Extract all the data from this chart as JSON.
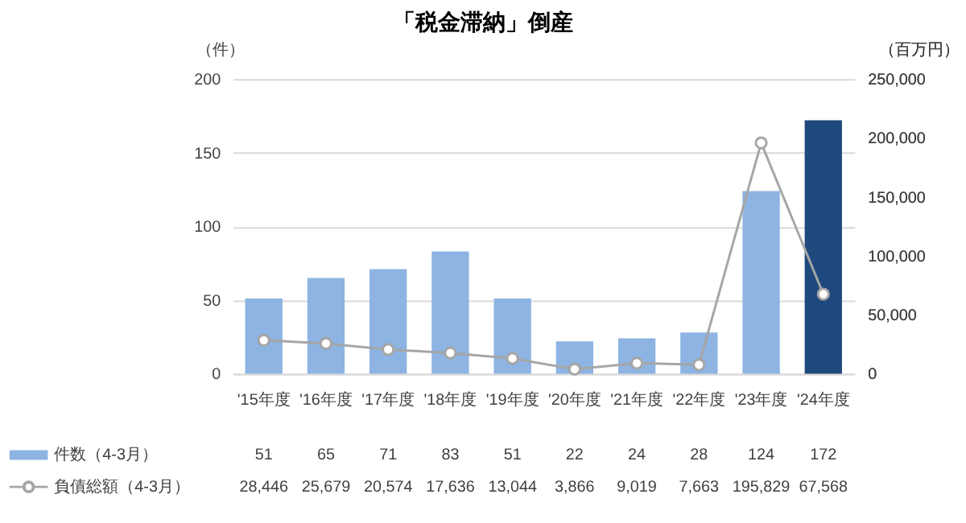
{
  "chart_data": {
    "type": "bar",
    "title": "「税金滞納」倒産",
    "ylabel": "（件）",
    "y2label": "（百万円）",
    "categories": [
      "'15年度",
      "'16年度",
      "'17年度",
      "'18年度",
      "'19年度",
      "'20年度",
      "'21年度",
      "'22年度",
      "'23年度",
      "'24年度"
    ],
    "series": [
      {
        "name": "件数（4-3月）",
        "color": "#8db4e2",
        "colors": [
          "#8db4e2",
          "#8db4e2",
          "#8db4e2",
          "#8db4e2",
          "#8db4e2",
          "#8db4e2",
          "#8db4e2",
          "#8db4e2",
          "#8db4e2",
          "#1f497d"
        ],
        "values": [
          51,
          65,
          71,
          83,
          51,
          22,
          24,
          28,
          124,
          172
        ],
        "value_labels": [
          "51",
          "65",
          "71",
          "83",
          "51",
          "22",
          "24",
          "28",
          "124",
          "172"
        ]
      },
      {
        "name": "負債総額（4-3月）",
        "type": "line",
        "axis": "y2",
        "color": "#a6a6a6",
        "values": [
          28446,
          25679,
          20574,
          17636,
          13044,
          3866,
          9019,
          7663,
          195829,
          67568
        ],
        "value_labels": [
          "28,446",
          "25,679",
          "20,574",
          "17,636",
          "13,044",
          "3,866",
          "9,019",
          "7,663",
          "195,829",
          "67,568"
        ]
      }
    ],
    "ylim": [
      0,
      200
    ],
    "yticks": [
      0,
      50,
      100,
      150,
      200
    ],
    "y2lim": [
      0,
      250000
    ],
    "y2ticks": [
      0,
      {
        "value": 50000,
        "label": "50,000"
      },
      {
        "value": 100000,
        "label": "100,000"
      },
      {
        "value": 150000,
        "label": "150,000"
      },
      {
        "value": 200000,
        "label": "200,000"
      },
      {
        "value": 250000,
        "label": "250,000"
      }
    ],
    "grid": "y",
    "marker": "circle",
    "legend": "bottom"
  }
}
